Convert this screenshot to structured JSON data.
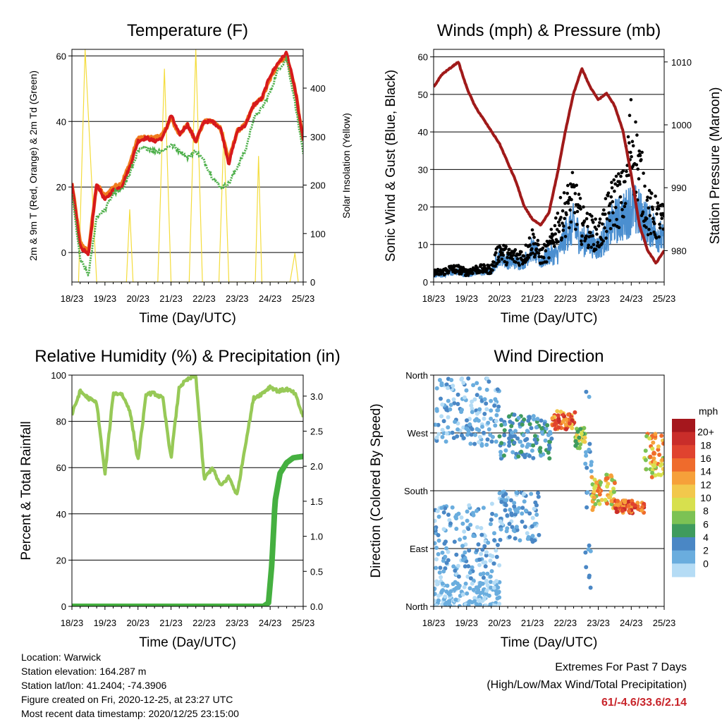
{
  "time_ticks": [
    "18/23",
    "19/23",
    "20/23",
    "21/23",
    "22/23",
    "23/23",
    "24/23",
    "25/23"
  ],
  "xlabel": "Time (Day/UTC)",
  "colors": {
    "temp_2m": "#d7191c",
    "temp_9m": "#f07a1e",
    "dewpoint": "#4daf4a",
    "solar": "#f4dc3c",
    "wind": "#4b8fd0",
    "gust": "#000000",
    "pressure": "#a01a1a",
    "rh": "#97c957",
    "precip": "#45b040",
    "extremes": "#c8252b"
  },
  "chart_data": [
    {
      "id": "temperature",
      "type": "line",
      "title": "Temperature (F)",
      "xlabel": "Time (Day/UTC)",
      "ylabel": "2m & 9m T (Red, Orange) & 2m Td (Green)",
      "ylabel_right": "Solar Insolation (Yellow)",
      "ylim": [
        -9,
        62
      ],
      "yticks": [
        0,
        20,
        40,
        60
      ],
      "y2lim": [
        0,
        480
      ],
      "y2ticks": [
        0,
        100,
        200,
        300,
        400
      ],
      "x": [
        0,
        0.25,
        0.5,
        0.75,
        1,
        1.25,
        1.5,
        1.75,
        2,
        2.25,
        2.5,
        2.75,
        3,
        3.25,
        3.5,
        3.75,
        4,
        4.25,
        4.5,
        4.75,
        5,
        5.25,
        5.5,
        5.75,
        6,
        6.25,
        6.5,
        6.75,
        7
      ],
      "series": [
        {
          "name": "2m T",
          "values": [
            21,
            2,
            -1,
            21,
            16,
            19,
            20,
            26,
            34,
            35,
            34,
            35,
            42,
            36,
            39,
            34,
            40,
            40,
            38,
            27,
            37,
            39,
            45,
            47,
            54,
            58,
            61,
            50,
            34
          ]
        },
        {
          "name": "9m T",
          "values": [
            21,
            3,
            0,
            21,
            17,
            20,
            21,
            27,
            35,
            35,
            35,
            36,
            41,
            36,
            39,
            34,
            40,
            40,
            38,
            28,
            37,
            39,
            45,
            47,
            53,
            58,
            60,
            50,
            34
          ]
        },
        {
          "name": "2m Td",
          "values": [
            18,
            -2,
            -7,
            11,
            13,
            18,
            19,
            24,
            31,
            32,
            31,
            31,
            33,
            31,
            29,
            31,
            28,
            23,
            20,
            21,
            26,
            31,
            41,
            44,
            49,
            56,
            59,
            46,
            30
          ]
        },
        {
          "name": "Solar Insolation",
          "axis": "right",
          "values": [
            [
              0.2,
              0
            ],
            [
              0.4,
              480
            ],
            [
              0.75,
              0
            ],
            [
              1.65,
              0
            ],
            [
              1.75,
              150
            ],
            [
              1.85,
              0
            ],
            [
              2.6,
              0
            ],
            [
              2.8,
              440
            ],
            [
              3.0,
              0
            ],
            [
              3.55,
              0
            ],
            [
              3.75,
              480
            ],
            [
              3.95,
              0
            ],
            [
              4.45,
              0
            ],
            [
              4.6,
              310
            ],
            [
              4.75,
              0
            ],
            [
              5.55,
              0
            ],
            [
              5.65,
              260
            ],
            [
              5.75,
              0
            ],
            [
              6.6,
              0
            ],
            [
              6.75,
              60
            ],
            [
              6.85,
              0
            ]
          ]
        }
      ]
    },
    {
      "id": "winds",
      "type": "line",
      "title": "Winds (mph) & Pressure (mb)",
      "xlabel": "Time (Day/UTC)",
      "ylabel": "Sonic Wind & Gust (Blue, Black)",
      "ylabel_right": "Station Pressure (Maroon)",
      "ylim": [
        0,
        62
      ],
      "yticks": [
        0,
        10,
        20,
        30,
        40,
        50,
        60
      ],
      "y2lim": [
        975,
        1012
      ],
      "y2ticks": [
        980,
        990,
        1000,
        1010
      ],
      "x": [
        0,
        0.25,
        0.5,
        0.75,
        1,
        1.25,
        1.5,
        1.75,
        2,
        2.25,
        2.5,
        2.75,
        3,
        3.25,
        3.5,
        3.75,
        4,
        4.25,
        4.5,
        4.75,
        5,
        5.25,
        5.5,
        5.75,
        6,
        6.25,
        6.5,
        6.75,
        7
      ],
      "series": [
        {
          "name": "Sonic Wind",
          "values": [
            2,
            2,
            3,
            3,
            2,
            3,
            3,
            3,
            8,
            6,
            6,
            6,
            10,
            6,
            8,
            8,
            14,
            17,
            12,
            12,
            10,
            14,
            18,
            19,
            22,
            20,
            17,
            15,
            12
          ]
        },
        {
          "name": "Gust",
          "values": [
            3,
            3,
            4,
            4,
            3,
            4,
            4,
            4,
            10,
            8,
            8,
            8,
            13,
            8,
            10,
            18,
            22,
            26,
            18,
            16,
            14,
            20,
            26,
            26,
            45,
            34,
            22,
            20,
            18
          ]
        },
        {
          "name": "Station Pressure",
          "axis": "right",
          "values": [
            1006,
            1008,
            1009,
            1010,
            1006,
            1003,
            1001,
            999,
            997,
            994,
            991,
            987,
            985,
            984,
            986,
            992,
            999,
            1005,
            1009,
            1006,
            1004,
            1005,
            1003,
            999,
            992,
            984,
            980,
            978,
            980
          ]
        }
      ]
    },
    {
      "id": "humidity",
      "type": "line",
      "title": "Relative Humidity (%) & Precipitation (in)",
      "xlabel": "Time (Day/UTC)",
      "ylabel": "Percent & Total Rainfall",
      "ylim": [
        0,
        100
      ],
      "yticks": [
        0,
        20,
        40,
        60,
        80,
        100
      ],
      "y2lim": [
        0,
        3.3
      ],
      "y2ticks": [
        0.0,
        0.5,
        1.0,
        1.5,
        2.0,
        2.5,
        3.0
      ],
      "y2ticklabels": [
        "0.0",
        "0.5",
        "1.0",
        "1.5",
        "2.0",
        "2.5",
        "3.0"
      ],
      "x": [
        0,
        0.25,
        0.5,
        0.75,
        1,
        1.25,
        1.5,
        1.75,
        2,
        2.25,
        2.5,
        2.75,
        3,
        3.25,
        3.5,
        3.75,
        4,
        4.25,
        4.5,
        4.75,
        5,
        5.25,
        5.5,
        5.75,
        6,
        6.25,
        6.5,
        6.75,
        7
      ],
      "series": [
        {
          "name": "RH",
          "values": [
            83,
            93,
            90,
            88,
            57,
            92,
            92,
            85,
            63,
            92,
            92,
            90,
            64,
            95,
            98,
            100,
            55,
            60,
            52,
            56,
            48,
            70,
            90,
            92,
            95,
            93,
            94,
            92,
            82
          ]
        },
        {
          "name": "Precip",
          "axis": "right",
          "points": [
            [
              0,
              0
            ],
            [
              5.8,
              0
            ],
            [
              5.95,
              0.05
            ],
            [
              6.05,
              0.6
            ],
            [
              6.15,
              1.5
            ],
            [
              6.3,
              1.9
            ],
            [
              6.5,
              2.05
            ],
            [
              6.7,
              2.12
            ],
            [
              7,
              2.14
            ]
          ]
        }
      ]
    },
    {
      "id": "wind_direction",
      "type": "scatter",
      "title": "Wind Direction",
      "xlabel": "Time (Day/UTC)",
      "ylabel": "Direction (Colored By Speed)",
      "ylim": [
        0,
        360
      ],
      "yticks": [
        0,
        90,
        180,
        270,
        360
      ],
      "yticklabels": [
        "North",
        "East",
        "South",
        "West",
        "North"
      ],
      "colorbar": {
        "unit": "mph",
        "labels": [
          "20+",
          "18",
          "16",
          "14",
          "12",
          "10",
          "8",
          "6",
          "4",
          "2",
          "0"
        ],
        "colors": [
          "#a5171d",
          "#c92d2a",
          "#e0432f",
          "#ef6b2c",
          "#f6a03a",
          "#f2c84c",
          "#d7e04e",
          "#7cc254",
          "#3f9b5e",
          "#4a87c5",
          "#6aadde",
          "#b5dcf5"
        ]
      },
      "clusters": [
        {
          "x": [
            0.0,
            2.0
          ],
          "y": [
            40,
            160
          ],
          "speed": [
            1,
            5
          ]
        },
        {
          "x": [
            0.0,
            2.0
          ],
          "y": [
            250,
            355
          ],
          "speed": [
            1,
            5
          ]
        },
        {
          "x": [
            0.0,
            2.0
          ],
          "y": [
            0,
            40
          ],
          "speed": [
            1,
            4
          ]
        },
        {
          "x": [
            2.0,
            3.6
          ],
          "y": [
            230,
            300
          ],
          "speed": [
            2,
            8
          ]
        },
        {
          "x": [
            2.0,
            3.2
          ],
          "y": [
            100,
            180
          ],
          "speed": [
            1,
            6
          ]
        },
        {
          "x": [
            3.6,
            4.3
          ],
          "y": [
            275,
            305
          ],
          "speed": [
            12,
            22
          ]
        },
        {
          "x": [
            4.3,
            4.6
          ],
          "y": [
            245,
            280
          ],
          "speed": [
            6,
            14
          ]
        },
        {
          "x": [
            4.6,
            4.8
          ],
          "y": [
            20,
            360
          ],
          "speed": [
            2,
            6
          ]
        },
        {
          "x": [
            4.8,
            5.5
          ],
          "y": [
            150,
            205
          ],
          "speed": [
            8,
            18
          ]
        },
        {
          "x": [
            5.5,
            6.4
          ],
          "y": [
            145,
            165
          ],
          "speed": [
            14,
            22
          ]
        },
        {
          "x": [
            6.4,
            7.0
          ],
          "y": [
            200,
            270
          ],
          "speed": [
            8,
            18
          ]
        }
      ]
    }
  ],
  "station_info": [
    "Location: Warwick",
    "Station elevation: 164.287 m",
    "Station lat/lon: 41.2404; -74.3906",
    "Figure created on Fri, 2020-12-25, at 23:27 UTC",
    "Most recent data timestamp: 2020/12/25 23:15:00"
  ],
  "extremes": {
    "title": "Extremes For Past 7 Days",
    "subtitle": "(High/Low/Max Wind/Total Precipitation)",
    "values": "61/-4.6/33.6/2.14"
  }
}
